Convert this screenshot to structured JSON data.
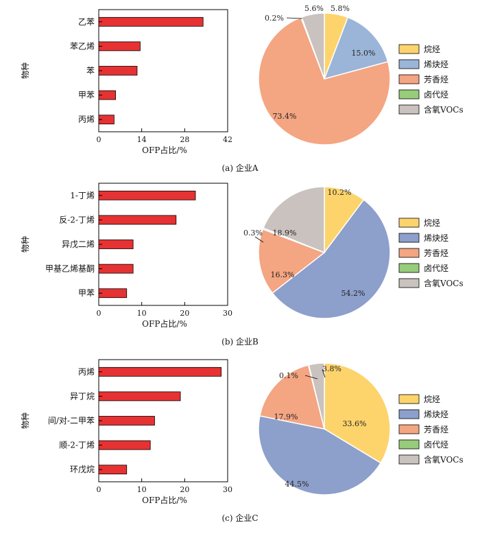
{
  "chart_data": [
    {
      "panel": "A",
      "caption": "(a)  企业A",
      "bar": {
        "type": "bar",
        "orientation": "horizontal",
        "categories": [
          "乙苯",
          "苯乙烯",
          "苯",
          "甲苯",
          "丙烯"
        ],
        "values": [
          34,
          13.5,
          12.5,
          5.5,
          5
        ],
        "xlabel": "OFP占比/%",
        "ylabel": "物种",
        "xlim": [
          0,
          42
        ],
        "xticks": [
          0,
          14,
          28,
          42
        ],
        "color": "#e63232"
      },
      "pie": {
        "type": "pie",
        "slices": [
          {
            "name": "烷烃",
            "value": 5.8,
            "label": "5.8%",
            "color": "#fdd46c"
          },
          {
            "name": "烯炔烃",
            "value": 15.0,
            "label": "15.0%",
            "color": "#9bb5d8"
          },
          {
            "name": "芳香烃",
            "value": 73.4,
            "label": "73.4%",
            "color": "#f4a582"
          },
          {
            "name": "卤代烃",
            "value": 0.2,
            "label": "0.2%",
            "color": "#97cc7b"
          },
          {
            "name": "含氧VOCs",
            "value": 5.6,
            "label": "5.6%",
            "color": "#c9c2be"
          }
        ]
      }
    },
    {
      "panel": "B",
      "caption": "(b)  企业B",
      "bar": {
        "type": "bar",
        "orientation": "horizontal",
        "categories": [
          "1-丁烯",
          "反-2-丁烯",
          "异戊二烯",
          "甲基乙烯基酮",
          "甲苯"
        ],
        "values": [
          22.5,
          18,
          8,
          8,
          6.5
        ],
        "xlabel": "OFP占比/%",
        "ylabel": "物种",
        "xlim": [
          0,
          30
        ],
        "xticks": [
          0,
          10,
          20,
          30
        ],
        "color": "#e63232"
      },
      "pie": {
        "type": "pie",
        "slices": [
          {
            "name": "烷烃",
            "value": 10.2,
            "label": "10.2%",
            "color": "#fdd46c"
          },
          {
            "name": "烯炔烃",
            "value": 54.2,
            "label": "54.2%",
            "color": "#8d9fcb"
          },
          {
            "name": "芳香烃",
            "value": 16.3,
            "label": "16.3%",
            "color": "#f4a582"
          },
          {
            "name": "卤代烃",
            "value": 0.3,
            "label": "0.3%",
            "color": "#97cc7b"
          },
          {
            "name": "含氧VOCs",
            "value": 18.9,
            "label": "18.9%",
            "color": "#c9c2be"
          }
        ]
      }
    },
    {
      "panel": "C",
      "caption": "(c)  企业C",
      "bar": {
        "type": "bar",
        "orientation": "horizontal",
        "categories": [
          "丙烯",
          "异丁烷",
          "间/对-二甲苯",
          "顺-2-丁烯",
          "环戊烷"
        ],
        "values": [
          28.5,
          19,
          13,
          12,
          6.5
        ],
        "xlabel": "OFP占比/%",
        "ylabel": "物种",
        "xlim": [
          0,
          30
        ],
        "xticks": [
          0,
          10,
          20,
          30
        ],
        "color": "#e63232"
      },
      "pie": {
        "type": "pie",
        "slices": [
          {
            "name": "烷烃",
            "value": 33.6,
            "label": "33.6%",
            "color": "#fdd46c"
          },
          {
            "name": "烯炔烃",
            "value": 44.5,
            "label": "44.5%",
            "color": "#8d9fcb"
          },
          {
            "name": "芳香烃",
            "value": 17.9,
            "label": "17.9%",
            "color": "#f4a582"
          },
          {
            "name": "卤代烃",
            "value": 0.1,
            "label": "0.1%",
            "color": "#97cc7b"
          },
          {
            "name": "含氧VOCs",
            "value": 3.8,
            "label": "3.8%",
            "color": "#c9c2be"
          }
        ]
      }
    }
  ]
}
